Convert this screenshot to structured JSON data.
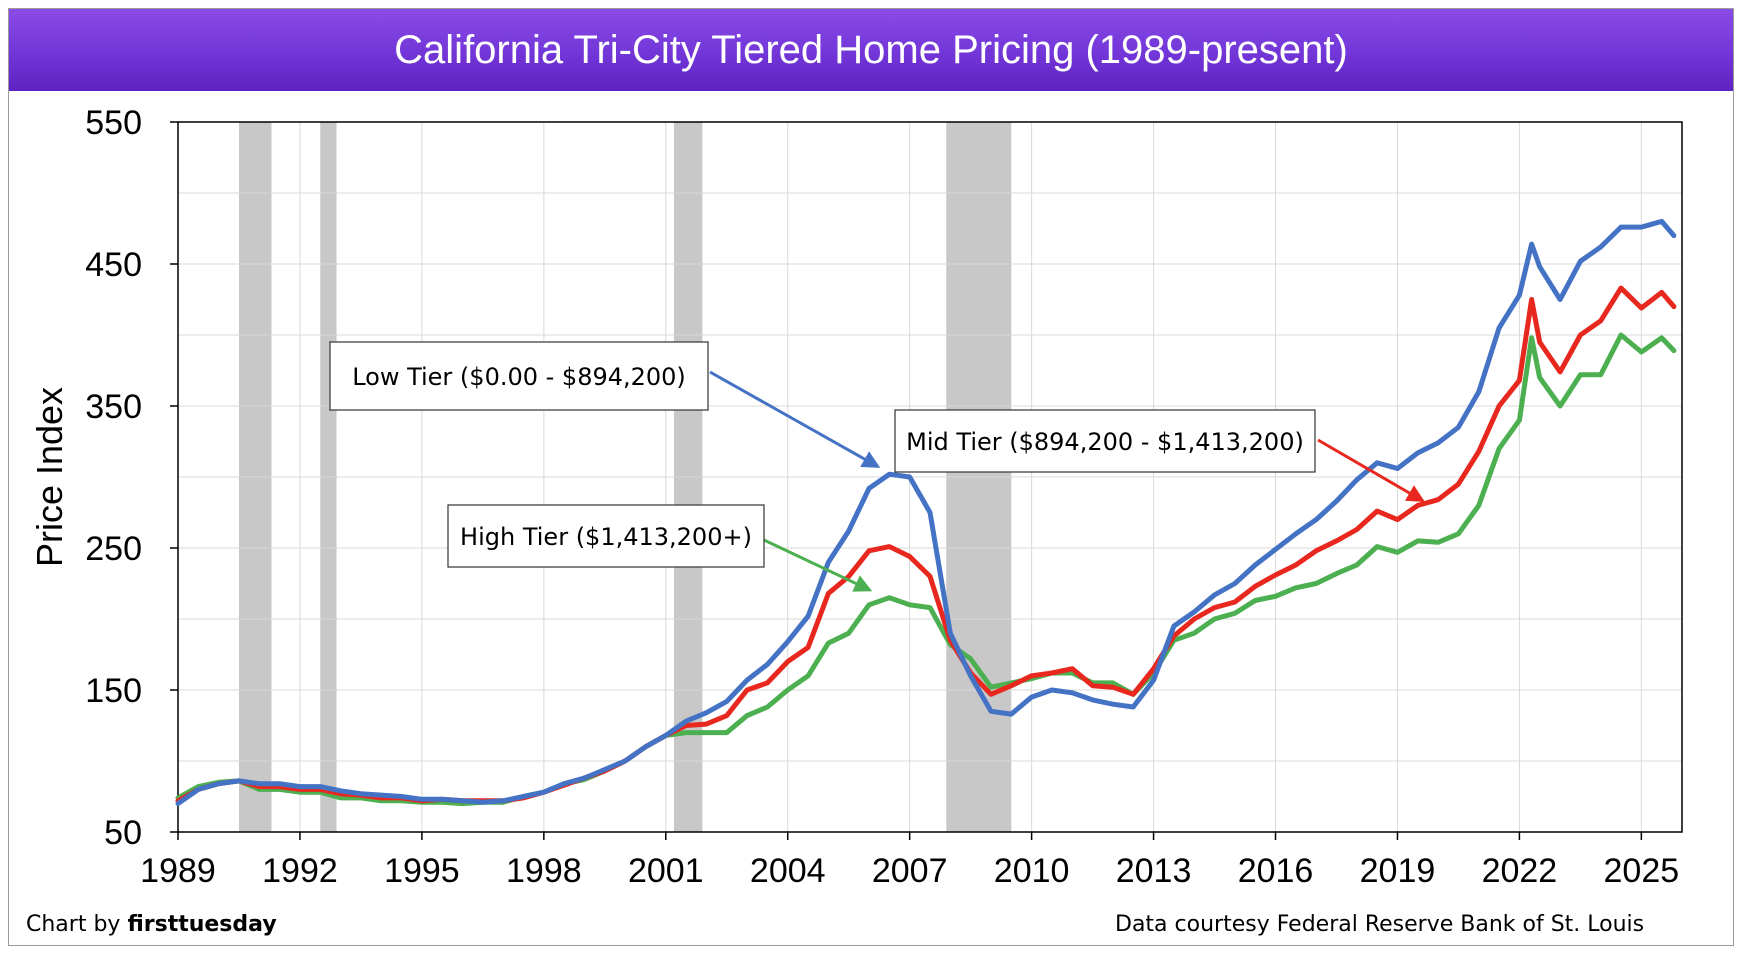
{
  "title": "California Tri-City Tiered Home Pricing (1989-present)",
  "footer": {
    "credit_prefix": "Chart by",
    "credit_brand": "firsttuesday",
    "source": "Data courtesy Federal Reserve Bank of St. Louis"
  },
  "chart_data": {
    "type": "line",
    "title": "California Tri-City Tiered Home Pricing (1989-present)",
    "xlabel": "",
    "ylabel": "Price Index",
    "xlim": [
      1989,
      2026
    ],
    "ylim": [
      50,
      550
    ],
    "yticks": [
      50,
      150,
      250,
      350,
      450,
      550
    ],
    "xticks": [
      1989,
      1992,
      1995,
      1998,
      2001,
      2004,
      2007,
      2010,
      2013,
      2016,
      2019,
      2022,
      2025
    ],
    "grid": true,
    "recessions": [
      [
        1990.5,
        1991.3
      ],
      [
        1992.5,
        1992.9
      ],
      [
        2001.2,
        2001.9
      ],
      [
        2007.9,
        2009.5
      ]
    ],
    "series": [
      {
        "name": "Low Tier ($0.00 - $894,200)",
        "color": "#4472c4",
        "x": [
          1989,
          1989.5,
          1990,
          1990.5,
          1991,
          1991.5,
          1992,
          1992.5,
          1993,
          1993.5,
          1994,
          1994.5,
          1995,
          1995.5,
          1996,
          1996.5,
          1997,
          1997.5,
          1998,
          1998.5,
          1999,
          1999.5,
          2000,
          2000.5,
          2001,
          2001.5,
          2002,
          2002.5,
          2003,
          2003.5,
          2004,
          2004.5,
          2005,
          2005.5,
          2006,
          2006.5,
          2007,
          2007.5,
          2008,
          2008.5,
          2009,
          2009.5,
          2010,
          2010.5,
          2011,
          2011.5,
          2012,
          2012.5,
          2013,
          2013.5,
          2014,
          2014.5,
          2015,
          2015.5,
          2016,
          2016.5,
          2017,
          2017.5,
          2018,
          2018.5,
          2019,
          2019.5,
          2020,
          2020.5,
          2021,
          2021.5,
          2022,
          2022.3,
          2022.5,
          2023,
          2023.5,
          2024,
          2024.5,
          2025,
          2025.5,
          2025.8
        ],
        "values": [
          70,
          80,
          84,
          86,
          84,
          84,
          82,
          82,
          79,
          77,
          76,
          75,
          73,
          73,
          72,
          71,
          72,
          75,
          78,
          84,
          88,
          94,
          100,
          110,
          118,
          128,
          134,
          142,
          157,
          168,
          184,
          202,
          240,
          262,
          292,
          302,
          300,
          275,
          190,
          160,
          135,
          133,
          145,
          150,
          148,
          143,
          140,
          138,
          157,
          195,
          205,
          217,
          225,
          238,
          249,
          260,
          270,
          283,
          298,
          310,
          306,
          317,
          324,
          335,
          360,
          405,
          428,
          464,
          448,
          425,
          452,
          462,
          476,
          476,
          480,
          470
        ]
      },
      {
        "name": "Mid Tier ($894,200 - $1,413,200)",
        "color": "#e8281f",
        "x": [
          1989,
          1989.5,
          1990,
          1990.5,
          1991,
          1991.5,
          1992,
          1992.5,
          1993,
          1993.5,
          1994,
          1994.5,
          1995,
          1995.5,
          1996,
          1996.5,
          1997,
          1997.5,
          1998,
          1998.5,
          1999,
          1999.5,
          2000,
          2000.5,
          2001,
          2001.5,
          2002,
          2002.5,
          2003,
          2003.5,
          2004,
          2004.5,
          2005,
          2005.5,
          2006,
          2006.5,
          2007,
          2007.5,
          2008,
          2008.5,
          2009,
          2009.5,
          2010,
          2010.5,
          2011,
          2011.5,
          2012,
          2012.5,
          2013,
          2013.5,
          2014,
          2014.5,
          2015,
          2015.5,
          2016,
          2016.5,
          2017,
          2017.5,
          2018,
          2018.5,
          2019,
          2019.5,
          2020,
          2020.5,
          2021,
          2021.5,
          2022,
          2022.3,
          2022.5,
          2023,
          2023.5,
          2024,
          2024.5,
          2025,
          2025.5,
          2025.8
        ],
        "values": [
          72,
          80,
          84,
          86,
          82,
          82,
          80,
          80,
          77,
          76,
          74,
          74,
          72,
          73,
          72,
          72,
          72,
          74,
          78,
          83,
          88,
          93,
          100,
          110,
          118,
          125,
          126,
          132,
          150,
          155,
          170,
          180,
          218,
          230,
          248,
          251,
          244,
          230,
          185,
          162,
          147,
          153,
          160,
          162,
          165,
          153,
          152,
          147,
          165,
          188,
          200,
          208,
          212,
          223,
          231,
          238,
          248,
          255,
          263,
          276,
          270,
          280,
          284,
          295,
          318,
          350,
          368,
          425,
          395,
          374,
          400,
          410,
          433,
          419,
          430,
          420
        ]
      },
      {
        "name": "High Tier ($1,413,200+)",
        "color": "#4caf50",
        "x": [
          1989,
          1989.5,
          1990,
          1990.5,
          1991,
          1991.5,
          1992,
          1992.5,
          1993,
          1993.5,
          1994,
          1994.5,
          1995,
          1995.5,
          1996,
          1996.5,
          1997,
          1997.5,
          1998,
          1998.5,
          1999,
          1999.5,
          2000,
          2000.5,
          2001,
          2001.5,
          2002,
          2002.5,
          2003,
          2003.5,
          2004,
          2004.5,
          2005,
          2005.5,
          2006,
          2006.5,
          2007,
          2007.5,
          2008,
          2008.5,
          2009,
          2009.5,
          2010,
          2010.5,
          2011,
          2011.5,
          2012,
          2012.5,
          2013,
          2013.5,
          2014,
          2014.5,
          2015,
          2015.5,
          2016,
          2016.5,
          2017,
          2017.5,
          2018,
          2018.5,
          2019,
          2019.5,
          2020,
          2020.5,
          2021,
          2021.5,
          2022,
          2022.3,
          2022.5,
          2023,
          2023.5,
          2024,
          2024.5,
          2025,
          2025.5,
          2025.8
        ],
        "values": [
          74,
          82,
          85,
          86,
          80,
          80,
          78,
          78,
          74,
          74,
          72,
          72,
          71,
          71,
          70,
          71,
          71,
          75,
          78,
          84,
          87,
          93,
          100,
          110,
          118,
          120,
          120,
          120,
          132,
          138,
          150,
          160,
          183,
          190,
          210,
          215,
          210,
          208,
          182,
          172,
          152,
          155,
          158,
          162,
          162,
          155,
          155,
          147,
          162,
          185,
          190,
          200,
          204,
          213,
          216,
          222,
          225,
          232,
          238,
          251,
          247,
          255,
          254,
          260,
          280,
          320,
          340,
          398,
          370,
          350,
          372,
          372,
          400,
          388,
          398,
          389
        ]
      }
    ],
    "annotations": [
      {
        "text": "Low Tier ($0.00 - $894,200)",
        "series": 0,
        "target_x": 2006.2,
        "target_y": 302
      },
      {
        "text": "Mid Tier ($894,200 - $1,413,200)",
        "series": 1,
        "target_x": 2019.6,
        "target_y": 278
      },
      {
        "text": "High Tier ($1,413,200+)",
        "series": 2,
        "target_x": 2006.0,
        "target_y": 215
      }
    ]
  }
}
